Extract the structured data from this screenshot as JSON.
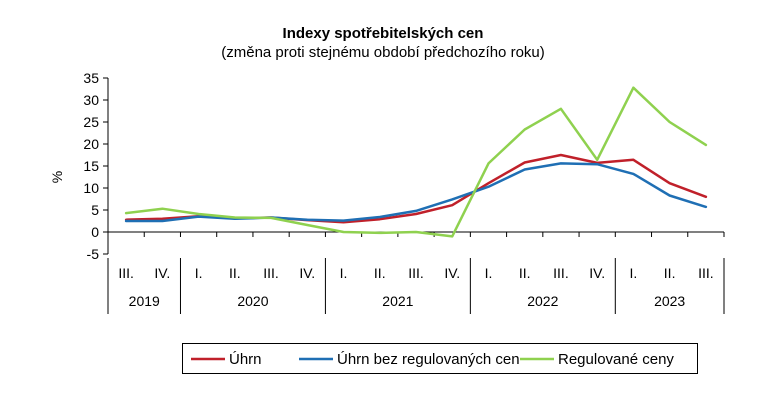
{
  "chart_data": {
    "type": "line",
    "title": "Indexy spotřebitelských cen",
    "subtitle": "(změna proti stejnému období předchozího roku)",
    "ylabel": "%",
    "ylim": [
      -5,
      35
    ],
    "yticks": [
      -5,
      0,
      5,
      10,
      15,
      20,
      25,
      30,
      35
    ],
    "categories": [
      "III.",
      "IV.",
      "I.",
      "II.",
      "III.",
      "IV.",
      "I.",
      "II.",
      "III.",
      "IV.",
      "I.",
      "II.",
      "III.",
      "IV.",
      "I.",
      "II.",
      "III."
    ],
    "years": [
      {
        "label": "2019",
        "count": 2
      },
      {
        "label": "2020",
        "count": 4
      },
      {
        "label": "2021",
        "count": 4
      },
      {
        "label": "2022",
        "count": 4
      },
      {
        "label": "2023",
        "count": 3
      }
    ],
    "series": [
      {
        "name": "Úhrn",
        "color": "#c0202a",
        "values": [
          2.8,
          3.0,
          3.6,
          3.1,
          3.3,
          2.7,
          2.2,
          2.9,
          4.1,
          6.1,
          11.1,
          15.8,
          17.5,
          15.7,
          16.4,
          11.1,
          8.0
        ]
      },
      {
        "name": "Úhrn bez regulovaných cen",
        "color": "#1f6fb4",
        "values": [
          2.5,
          2.5,
          3.5,
          3.0,
          3.3,
          2.8,
          2.6,
          3.4,
          4.8,
          7.4,
          10.3,
          14.2,
          15.6,
          15.4,
          13.2,
          8.3,
          5.7
        ]
      },
      {
        "name": "Regulované ceny",
        "color": "#8fd14f",
        "values": [
          4.3,
          5.3,
          4.1,
          3.3,
          3.2,
          1.6,
          0.0,
          -0.2,
          0.0,
          -1.0,
          15.6,
          23.3,
          28.0,
          16.4,
          32.8,
          25.0,
          19.8
        ]
      }
    ],
    "grid": false,
    "legend_position": "bottom"
  }
}
